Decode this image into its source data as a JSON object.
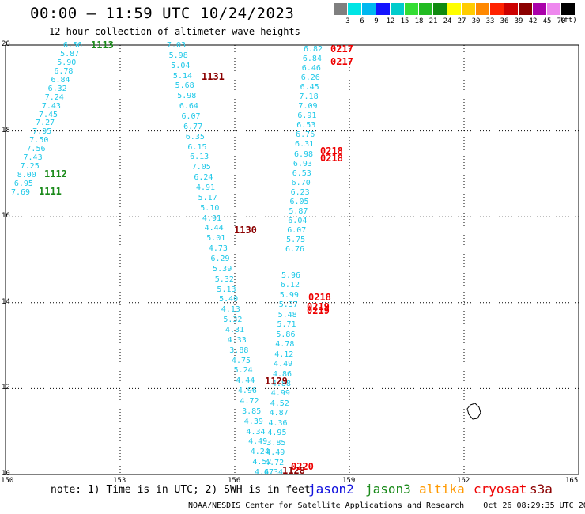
{
  "header": {
    "title": "00:00 – 11:59 UTC 10/24/2023",
    "subtitle": "12 hour collection of altimeter wave heights"
  },
  "colorbar": {
    "labels": [
      "3",
      "6",
      "9",
      "12",
      "15",
      "18",
      "21",
      "24",
      "27",
      "30",
      "33",
      "36",
      "39",
      "42",
      "45",
      "70"
    ],
    "colors": [
      "#7f7f7f",
      "#00e5e5",
      "#00b8f0",
      "#1414ff",
      "#00cccc",
      "#33dd33",
      "#22bb22",
      "#108a10",
      "#ffff00",
      "#ffcc00",
      "#ff8800",
      "#ff2200",
      "#cc0000",
      "#8b0000",
      "#aa00aa",
      "#ee88ee",
      "#000000"
    ],
    "unit": "(ft)"
  },
  "map": {
    "lon_min": 150,
    "lon_max": 165,
    "lat_min": 10,
    "lat_max": 20,
    "x_ticks": [
      "150",
      "153",
      "156",
      "159",
      "162",
      "165"
    ],
    "y_ticks": [
      "20",
      "18",
      "16",
      "14",
      "12",
      "10"
    ]
  },
  "passes": [
    {
      "label": "1113",
      "color": "#1a8a1a"
    },
    {
      "label": "1112",
      "color": "#1a8a1a"
    },
    {
      "label": "1111",
      "color": "#1a8a1a"
    },
    {
      "label": "1131",
      "color": "#8b0000"
    },
    {
      "label": "1130",
      "color": "#8b0000"
    },
    {
      "label": "1129",
      "color": "#8b0000"
    },
    {
      "label": "1128",
      "color": "#8b0000"
    },
    {
      "label": "0217",
      "color": "#ee0000"
    },
    {
      "label": "0217",
      "color": "#ee0000"
    },
    {
      "label": "0218",
      "color": "#ee0000"
    },
    {
      "label": "0218",
      "color": "#ee0000"
    },
    {
      "label": "0218",
      "color": "#ee0000"
    },
    {
      "label": "0219",
      "color": "#ee0000"
    },
    {
      "label": "0219",
      "color": "#ee0000"
    },
    {
      "label": "0220",
      "color": "#ee0000"
    }
  ],
  "observations": {
    "track1": [
      "6.56",
      "5.87",
      "5.90",
      "6.78",
      "6.84",
      "6.32",
      "7.24",
      "7.43",
      "7.45",
      "7.27",
      "7.95",
      "7.50",
      "7.56",
      "7.43",
      "7.25",
      "8.00",
      "6.95",
      "7.69"
    ],
    "track2": [
      "7.03",
      "5.98",
      "5.04",
      "5.14",
      "5.68",
      "5.98",
      "6.64",
      "6.07",
      "6.77",
      "6.35",
      "6.15",
      "6.13",
      "7.05",
      "6.24",
      "4.91",
      "5.17",
      "5.10",
      "4.91",
      "4.44",
      "5.01",
      "4.73",
      "6.29",
      "5.39",
      "5.32",
      "5.13",
      "5.40",
      "4.13",
      "5.32",
      "4.31",
      "4.33",
      "3.88",
      "4.75",
      "5.24",
      "4.44",
      "4.96",
      "4.72",
      "3.85",
      "4.39",
      "4.34",
      "4.49",
      "4.24",
      "4.52",
      "4.67"
    ],
    "track3": [
      "6.82",
      "6.84",
      "6.46",
      "6.26",
      "6.45",
      "7.18",
      "7.09",
      "6.91",
      "6.53",
      "6.76",
      "6.31",
      "6.98",
      "6.93",
      "6.53",
      "6.70",
      "6.23",
      "6.05",
      "5.87",
      "6.04",
      "6.07",
      "5.75",
      "6.76"
    ],
    "track4": [
      "5.96",
      "6.12",
      "5.99",
      "5.37",
      "5.48",
      "5.71",
      "5.86",
      "4.78",
      "4.12",
      "4.49",
      "4.86",
      "4.88",
      "4.99",
      "4.52",
      "4.87",
      "4.36",
      "4.95",
      "3.85",
      "4.49",
      "4.72",
      "4.34"
    ]
  },
  "footer": {
    "note": "note:  1) Time is in UTC;  2) SWH is in feet",
    "legend": [
      {
        "name": "jason2",
        "color": "#1010dd"
      },
      {
        "name": "jason3",
        "color": "#1a8a1a"
      },
      {
        "name": "altika",
        "color": "#ff9900"
      },
      {
        "name": "cryosat",
        "color": "#ee0000"
      },
      {
        "name": "s3a",
        "color": "#8b0000"
      }
    ],
    "credit": "NOAA/NESDIS Center for Satellite Applications and Research",
    "timestamp": "Oct 26 08:29:35 UTC 2023"
  }
}
